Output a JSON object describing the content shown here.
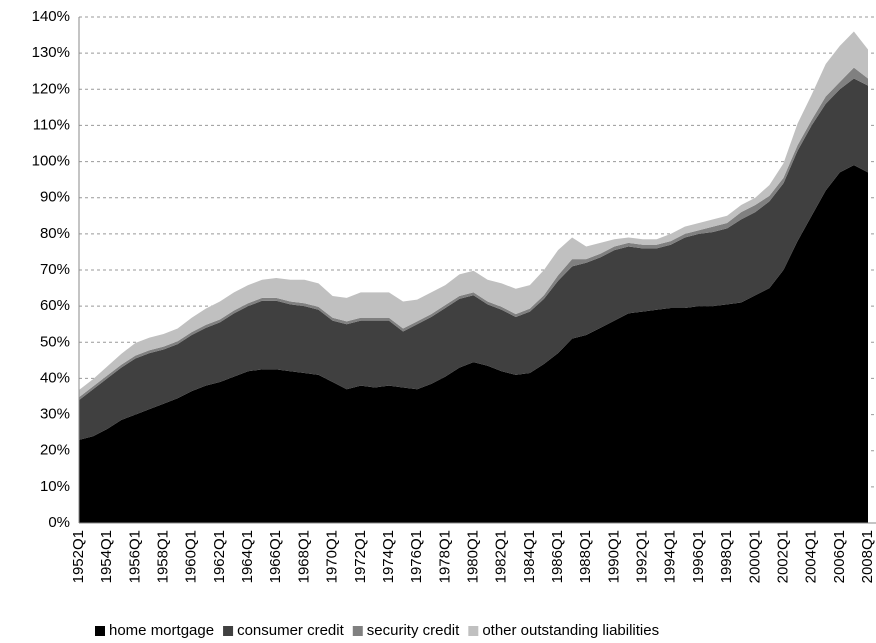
{
  "chart_data": {
    "type": "stacked-area",
    "categories": [
      "1952Q1",
      null,
      "1954Q1",
      null,
      "1956Q1",
      null,
      "1958Q1",
      null,
      "1960Q1",
      null,
      "1962Q1",
      null,
      "1964Q1",
      null,
      "1966Q1",
      null,
      "1968Q1",
      null,
      "1970Q1",
      null,
      "1972Q1",
      null,
      "1974Q1",
      null,
      "1976Q1",
      null,
      "1978Q1",
      null,
      "1980Q1",
      null,
      "1982Q1",
      null,
      "1984Q1",
      null,
      "1986Q1",
      null,
      "1988Q1",
      null,
      "1990Q1",
      null,
      "1992Q1",
      null,
      "1994Q1",
      null,
      "1996Q1",
      null,
      "1998Q1",
      null,
      "2000Q1",
      null,
      "2002Q1",
      null,
      "2004Q1",
      null,
      "2006Q1",
      null,
      "2008Q1"
    ],
    "series": [
      {
        "name": "home mortgage",
        "color": "#000000",
        "values": [
          23,
          24,
          26,
          28.5,
          30,
          31.5,
          33,
          34.5,
          36.5,
          38,
          39,
          40.5,
          42,
          42.5,
          42.5,
          42,
          41.5,
          41,
          39,
          37,
          38,
          37.5,
          38,
          37.5,
          37,
          38.5,
          40.5,
          43,
          44.5,
          43.5,
          42,
          41,
          41.5,
          44,
          47,
          51,
          52,
          54,
          56,
          58,
          58.5,
          59,
          59.5,
          59.5,
          60,
          60,
          60.5,
          61,
          63,
          65,
          70,
          78,
          85,
          92,
          97,
          99,
          97
        ]
      },
      {
        "name": "consumer credit",
        "color": "#404040",
        "values": [
          11,
          13,
          14,
          14.5,
          15.5,
          15.5,
          15,
          15,
          15.5,
          16,
          16.5,
          17.5,
          18,
          19,
          19,
          18.5,
          18.5,
          18,
          17,
          18,
          18,
          18.5,
          18,
          15.5,
          18,
          18.5,
          19,
          19,
          18.5,
          17,
          17,
          16,
          17,
          18,
          20,
          20,
          20,
          19.5,
          19.5,
          18.5,
          17.5,
          17,
          17.5,
          19.5,
          20,
          20.5,
          21,
          23,
          23,
          24,
          24,
          25,
          25,
          24,
          23,
          24,
          24
        ]
      },
      {
        "name": "security credit",
        "color": "#808080",
        "values": [
          0.8,
          0.8,
          0.8,
          0.8,
          0.8,
          0.8,
          0.8,
          0.8,
          0.8,
          0.8,
          0.8,
          0.8,
          0.8,
          0.8,
          0.8,
          0.8,
          0.8,
          0.8,
          0.8,
          0.8,
          0.8,
          0.8,
          0.8,
          0.8,
          0.8,
          0.8,
          0.8,
          0.8,
          0.8,
          0.8,
          0.8,
          0.8,
          0.8,
          1,
          1.5,
          2,
          1,
          1,
          1,
          1,
          1,
          1,
          1,
          1,
          1,
          1.5,
          1.5,
          2,
          2,
          1.5,
          1.5,
          1.5,
          1.5,
          2,
          2,
          3,
          2
        ]
      },
      {
        "name": "other outstanding liabilities",
        "color": "#c0c0c0",
        "values": [
          2,
          2,
          2.5,
          3,
          3.5,
          3.5,
          3.5,
          3.5,
          4,
          4.5,
          5,
          5,
          5,
          5,
          5.5,
          6,
          6.5,
          6.5,
          6,
          6.5,
          7,
          7,
          7,
          7.5,
          6,
          6,
          5.5,
          6,
          6,
          6,
          6.5,
          7,
          6.5,
          7,
          7,
          6,
          3.5,
          3,
          2,
          1.5,
          1.5,
          1.5,
          2,
          2,
          2,
          2,
          2,
          2,
          2,
          3,
          4,
          6,
          7,
          9,
          10,
          10,
          8
        ]
      }
    ],
    "ylim": [
      0,
      140
    ],
    "yticks": [
      {
        "value": 0,
        "label": "0%"
      },
      {
        "value": 10,
        "label": "10%"
      },
      {
        "value": 20,
        "label": "20%"
      },
      {
        "value": 30,
        "label": "30%"
      },
      {
        "value": 40,
        "label": "40%"
      },
      {
        "value": 50,
        "label": "50%"
      },
      {
        "value": 60,
        "label": "60%"
      },
      {
        "value": 70,
        "label": "70%"
      },
      {
        "value": 80,
        "label": "80%"
      },
      {
        "value": 90,
        "label": "90%"
      },
      {
        "value": 100,
        "label": "100%"
      },
      {
        "value": 110,
        "label": "110%"
      },
      {
        "value": 120,
        "label": "120%"
      },
      {
        "value": 130,
        "label": "130%"
      },
      {
        "value": 140,
        "label": "140%"
      }
    ],
    "grid": true,
    "legend": "bottom"
  }
}
